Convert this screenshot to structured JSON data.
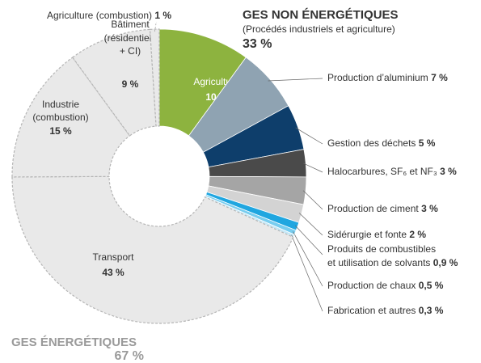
{
  "chart_data": {
    "type": "donut",
    "categories": [
      [
        "Agriculture"
      ],
      [
        "Production d’aluminium"
      ],
      [
        "Gestion des déchets"
      ],
      [
        "Halocarbures, SF₆ et NF₃"
      ],
      [
        "Production de ciment"
      ],
      [
        "Sidérurgie et fonte"
      ],
      [
        "Produits de combustibles",
        "et utilisation de solvants"
      ],
      [
        "Production de chaux"
      ],
      [
        "Fabrication et autres"
      ],
      [
        "Transport"
      ],
      [
        "Industrie",
        "(combustion)"
      ],
      [
        "Bâtiment",
        "(résidentiels",
        "+ CI)"
      ],
      [
        "Agriculture (combustion)"
      ]
    ],
    "values": [
      10,
      7,
      5,
      3,
      3,
      2,
      0.9,
      0.5,
      0.3,
      43,
      15,
      9,
      1
    ],
    "value_labels": [
      "10 %",
      "7 %",
      "5 %",
      "3 %",
      "3 %",
      "2 %",
      "0,9 %",
      "0,5 %",
      "0,3 %",
      "43 %",
      "15 %",
      "9 %",
      "1 %"
    ],
    "colors": [
      "#8db33f",
      "#8fa3b2",
      "#0e3e6b",
      "#4a4a4a",
      "#a5a5a5",
      "#d3d3d3",
      "#1fa6e0",
      "#78cdef",
      "#c4e7f6",
      "#e9e9e9",
      "#e9e9e9",
      "#e9e9e9",
      "#e9e9e9"
    ],
    "groups": [
      {
        "name": "GES NON ÉNERGÉTIQUES",
        "subtitle": "(Procédés industriels et agriculture)",
        "value": 33,
        "value_label": "33 %"
      },
      {
        "name": "GES ÉNERGÉTIQUES",
        "value": 67,
        "value_label": "67 %"
      }
    ]
  }
}
